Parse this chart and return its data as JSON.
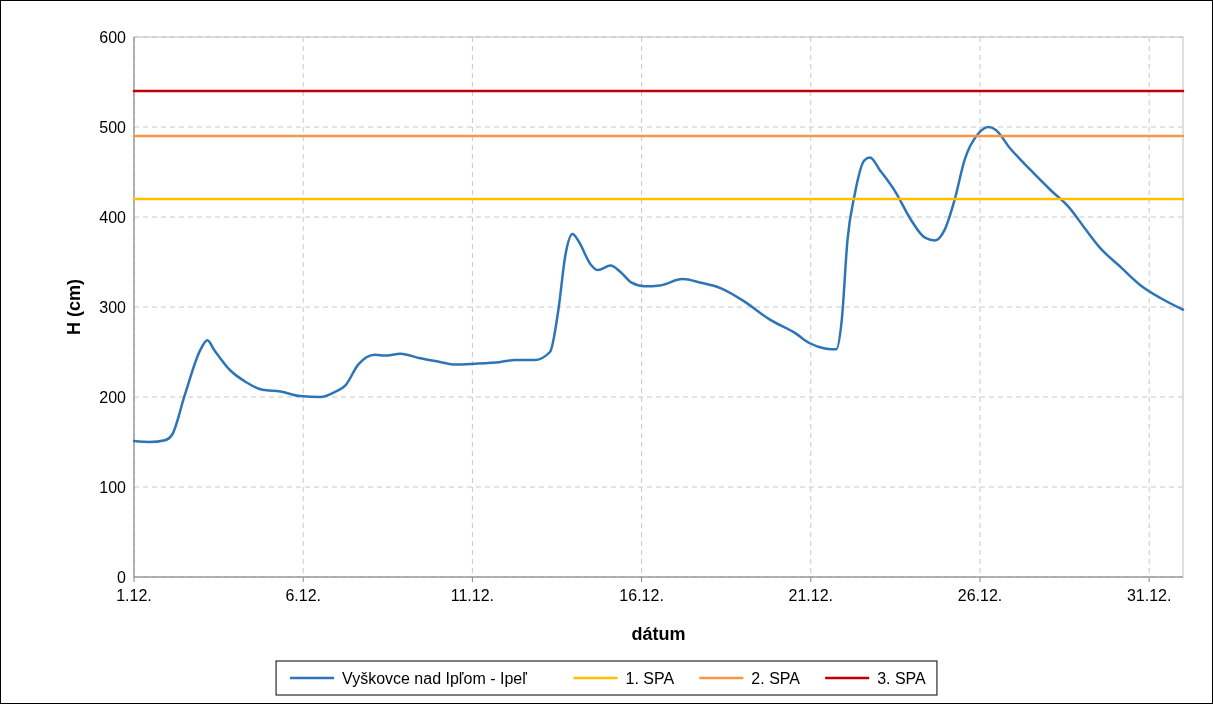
{
  "chart_data": {
    "type": "line",
    "xlabel": "dátum",
    "ylabel": "H (cm)",
    "xlim": [
      "--12-01",
      "--12-31T23:59"
    ],
    "ylim": [
      0,
      600
    ],
    "xticks": [
      {
        "value": "--12-01",
        "label": "1.12."
      },
      {
        "value": "--12-06",
        "label": "6.12."
      },
      {
        "value": "--12-11",
        "label": "11.12."
      },
      {
        "value": "--12-16",
        "label": "16.12."
      },
      {
        "value": "--12-21",
        "label": "21.12."
      },
      {
        "value": "--12-26",
        "label": "26.12."
      },
      {
        "value": "--12-31",
        "label": "31.12."
      }
    ],
    "yticks": [
      0,
      100,
      200,
      300,
      400,
      500,
      600
    ],
    "grid": true,
    "legend": "bottom",
    "marker": "none",
    "line_style": "solid",
    "series": [
      {
        "name": "Vyškovce nad Ipľom - Ipeľ",
        "color": "#2e75b6",
        "x": [
          "--12-01T00:00",
          "--12-01T11:00",
          "--12-01T22:00",
          "--12-02T03:00",
          "--12-02T12:00",
          "--12-02T23:00",
          "--12-03T04:00",
          "--12-03T09:00",
          "--12-03T20:00",
          "--12-04T07:00",
          "--12-04T19:00",
          "--12-05T08:00",
          "--12-05T22:00",
          "--12-06T12:00",
          "--12-06T23:00",
          "--12-07T06:00",
          "--12-07T15:00",
          "--12-08T03:00",
          "--12-08T10:00",
          "--12-08T21:00",
          "--12-09T11:00",
          "--12-10T01:00",
          "--12-10T12:00",
          "--12-11T02:00",
          "--12-11T20:00",
          "--12-12T06:00",
          "--12-12T20:00",
          "--12-13T07:00",
          "--12-13T13:00",
          "--12-13T18:00",
          "--12-13T23:00",
          "--12-14T03:00",
          "--12-14T12:00",
          "--12-14T17:00",
          "--12-15T02:00",
          "--12-15T09:00",
          "--12-15T17:00",
          "--12-16T02:00",
          "--12-16T13:00",
          "--12-17T05:00",
          "--12-17T18:00",
          "--12-18T08:00",
          "--12-19T01:00",
          "--12-19T19:00",
          "--12-20T13:00",
          "--12-20T23:00",
          "--12-21T10:00",
          "--12-21T18:00",
          "--12-21T22:00",
          "--12-22T02:00",
          "--12-22T07:00",
          "--12-22T14:00",
          "--12-22T18:00",
          "--12-23T01:00",
          "--12-23T12:00",
          "--12-23T23:00",
          "--12-24T09:00",
          "--12-24T16:00",
          "--12-24T23:00",
          "--12-25T06:00",
          "--12-25T13:00",
          "--12-25T23:00",
          "--12-26T06:00",
          "--12-26T11:00",
          "--12-26T21:00",
          "--12-27T12:00",
          "--12-28T02:00",
          "--12-28T15:00",
          "--12-29T03:00",
          "--12-29T13:00",
          "--12-30T04:00",
          "--12-30T18:00",
          "--12-31T08:00",
          "--12-31T23:59"
        ],
        "values": [
          151,
          150,
          152,
          158,
          202,
          252,
          263,
          252,
          230,
          217,
          208,
          206,
          201,
          200,
          206,
          213,
          236,
          247,
          246,
          248,
          243,
          239,
          236,
          237,
          239,
          241,
          241,
          250,
          297,
          358,
          381,
          374,
          347,
          341,
          346,
          339,
          327,
          323,
          324,
          331,
          327,
          321,
          306,
          286,
          271,
          260,
          254,
          253,
          286,
          374,
          424,
          463,
          466,
          452,
          428,
          397,
          377,
          374,
          386,
          419,
          463,
          493,
          500,
          497,
          477,
          452,
          430,
          411,
          386,
          366,
          344,
          324,
          310,
          297
        ]
      },
      {
        "name": "1. SPA",
        "color": "#ffc000",
        "x": [
          "--12-01",
          "--12-31T23:59"
        ],
        "values": [
          420,
          420
        ]
      },
      {
        "name": "2. SPA",
        "color": "#f79646",
        "x": [
          "--12-01",
          "--12-31T23:59"
        ],
        "values": [
          490,
          490
        ]
      },
      {
        "name": "3. SPA",
        "color": "#c00000",
        "x": [
          "--12-01",
          "--12-31T23:59"
        ],
        "values": [
          540,
          540
        ]
      }
    ]
  }
}
